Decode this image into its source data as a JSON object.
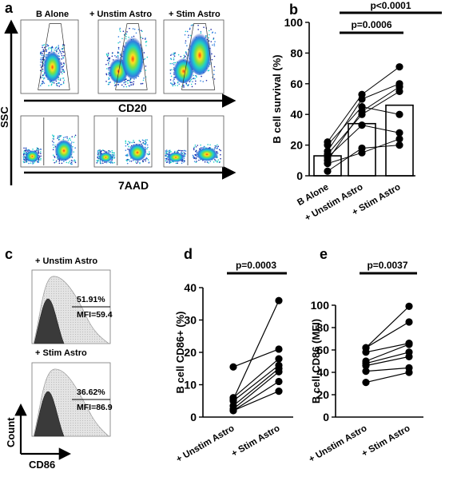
{
  "panel_letters": {
    "a": "a",
    "b": "b",
    "c": "c",
    "d": "d",
    "e": "e"
  },
  "panel_a": {
    "column_labels": [
      "B Alone",
      "+ Unstim Astro",
      "+ Stim Astro"
    ],
    "y_axis_label": "SSC",
    "row1_x_label": "CD20",
    "row2_x_label": "7AAD",
    "plot_colors": [
      "#1b2aa8",
      "#2f7fe0",
      "#1fd0c8",
      "#7fe040",
      "#ffe020",
      "#ff4010"
    ]
  },
  "panel_c": {
    "histograms": [
      {
        "label": "+ Unstim Astro",
        "percent": "51.91%",
        "mfi": "MFI=59.4"
      },
      {
        "label": "+ Stim Astro",
        "percent": "36.62%",
        "mfi": "MFI=86.9"
      }
    ],
    "y_axis_label": "Count",
    "x_axis_label": "CD86"
  },
  "chart_data": [
    {
      "id": "b",
      "type": "bar",
      "ylabel": "B cell survival (%)",
      "ylim": [
        0,
        100
      ],
      "yticks": [
        0,
        20,
        40,
        60,
        80,
        100
      ],
      "categories": [
        "B Alone",
        "+ Unstim Astro",
        "+ Stim Astro"
      ],
      "bar_values": [
        13,
        34,
        46
      ],
      "points": [
        [
          3,
          8,
          10,
          12,
          14,
          16,
          20,
          22
        ],
        [
          15,
          18,
          33,
          40,
          42,
          45,
          50,
          53
        ],
        [
          20,
          24,
          28,
          40,
          55,
          58,
          60,
          71
        ]
      ],
      "pairs": [
        [
          3,
          18
        ],
        [
          8,
          15
        ],
        [
          10,
          42
        ],
        [
          12,
          33
        ],
        [
          14,
          40
        ],
        [
          16,
          50
        ],
        [
          20,
          45
        ],
        [
          22,
          53
        ]
      ],
      "pairs2": [
        [
          18,
          20
        ],
        [
          15,
          24
        ],
        [
          42,
          58
        ],
        [
          33,
          28
        ],
        [
          40,
          55
        ],
        [
          50,
          60
        ],
        [
          45,
          40
        ],
        [
          53,
          71
        ]
      ],
      "annotations": [
        {
          "text": "p=0.0006",
          "from": 0,
          "to": 1
        },
        {
          "text": "p<0.0001",
          "from": 0,
          "to": 2
        }
      ]
    },
    {
      "id": "d",
      "type": "line",
      "ylabel": "B cell CD86+ (%)",
      "ylim": [
        0,
        40
      ],
      "yticks": [
        0,
        10,
        20,
        30,
        40
      ],
      "categories": [
        "+ Unstim Astro",
        "+ Stim Astro"
      ],
      "pairs": [
        [
          15.5,
          21
        ],
        [
          6,
          18
        ],
        [
          5,
          16
        ],
        [
          3.5,
          15
        ],
        [
          2.5,
          14
        ],
        [
          2,
          11
        ],
        [
          2,
          8
        ],
        [
          5.5,
          36
        ]
      ],
      "annotation": "p=0.0003"
    },
    {
      "id": "e",
      "type": "line",
      "ylabel": "B cell CD86 (MFI)",
      "ylim": [
        0,
        100
      ],
      "yticks": [
        0,
        20,
        40,
        60,
        80,
        100
      ],
      "categories": [
        "+ Unstim Astro",
        "+ Stim Astro"
      ],
      "pairs": [
        [
          31,
          40
        ],
        [
          41,
          44
        ],
        [
          46,
          54
        ],
        [
          48,
          58
        ],
        [
          50,
          65
        ],
        [
          58,
          66
        ],
        [
          62,
          85
        ],
        [
          62,
          99
        ]
      ],
      "annotation": "p=0.0037"
    }
  ]
}
